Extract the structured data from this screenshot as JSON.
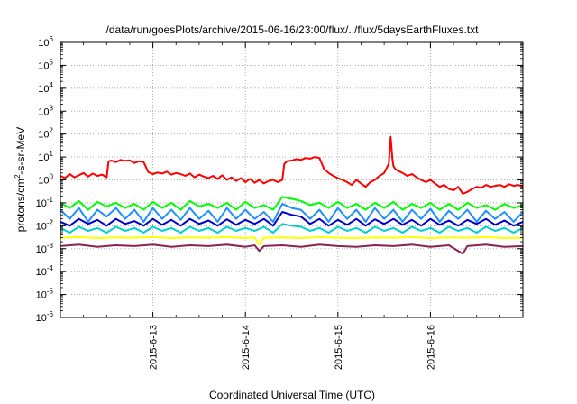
{
  "chart_data": {
    "type": "line",
    "title": "/data/run/goesPlots/archive/2015-06-16/23:00/flux/../flux/5daysEarthFluxes.txt",
    "xlabel": "Coordinated Universal Time (UTC)",
    "ylabel": "protons/cm2-s-sr-MeV",
    "ylabel_parts": {
      "base": "protons/cm",
      "sup": "2",
      "rest": "-s-sr-MeV"
    },
    "yscale": "log",
    "ylim": [
      1e-06,
      1000000.0
    ],
    "xlim": [
      "2015-06-12T00:00",
      "2015-06-17T00:00"
    ],
    "grid": true,
    "legend": "none",
    "x_ticks": [
      {
        "value": "2015-06-13T00:00",
        "label": "2015-6-13"
      },
      {
        "value": "2015-06-14T00:00",
        "label": "2015-6-14"
      },
      {
        "value": "2015-06-15T00:00",
        "label": "2015-6-15"
      },
      {
        "value": "2015-06-16T00:00",
        "label": "2015-6-16"
      }
    ],
    "y_ticks": [
      {
        "exp": -6,
        "base": "10",
        "sup": "-6"
      },
      {
        "exp": -5,
        "base": "10",
        "sup": "-5"
      },
      {
        "exp": -4,
        "base": "10",
        "sup": "-4"
      },
      {
        "exp": -3,
        "base": "10",
        "sup": "-3"
      },
      {
        "exp": -2,
        "base": "10",
        "sup": "-2"
      },
      {
        "exp": -1,
        "base": "10",
        "sup": "-1"
      },
      {
        "exp": 0,
        "base": "10",
        "sup": "0"
      },
      {
        "exp": 1,
        "base": "10",
        "sup": "1"
      },
      {
        "exp": 2,
        "base": "10",
        "sup": "2"
      },
      {
        "exp": 3,
        "base": "10",
        "sup": "3"
      },
      {
        "exp": 4,
        "base": "10",
        "sup": "4"
      },
      {
        "exp": 5,
        "base": "10",
        "sup": "5"
      },
      {
        "exp": 6,
        "base": "10",
        "sup": "6"
      }
    ],
    "series": [
      {
        "color": "#ff0000",
        "x_days": [
          0.0,
          0.05,
          0.1,
          0.15,
          0.2,
          0.25,
          0.3,
          0.35,
          0.4,
          0.45,
          0.5,
          0.52,
          0.55,
          0.6,
          0.65,
          0.7,
          0.75,
          0.8,
          0.85,
          0.9,
          0.95,
          1.0,
          1.05,
          1.1,
          1.15,
          1.2,
          1.25,
          1.3,
          1.35,
          1.4,
          1.45,
          1.5,
          1.55,
          1.6,
          1.65,
          1.7,
          1.75,
          1.8,
          1.85,
          1.9,
          1.95,
          2.0,
          2.05,
          2.1,
          2.15,
          2.2,
          2.25,
          2.3,
          2.35,
          2.4,
          2.42,
          2.45,
          2.5,
          2.55,
          2.6,
          2.65,
          2.7,
          2.75,
          2.8,
          2.82,
          2.85,
          2.9,
          2.95,
          3.0,
          3.05,
          3.1,
          3.15,
          3.2,
          3.25,
          3.3,
          3.35,
          3.4,
          3.45,
          3.5,
          3.55,
          3.57,
          3.59,
          3.6,
          3.62,
          3.65,
          3.7,
          3.75,
          3.8,
          3.85,
          3.9,
          3.95,
          4.0,
          4.05,
          4.1,
          4.15,
          4.2,
          4.25,
          4.3,
          4.35,
          4.4,
          4.45,
          4.5,
          4.55,
          4.6,
          4.65,
          4.7,
          4.75,
          4.8,
          4.85,
          4.9,
          4.95,
          5.0
        ],
        "values": [
          1.5,
          1.2,
          1.8,
          1.3,
          1.6,
          2.0,
          1.4,
          1.9,
          1.5,
          1.7,
          1.3,
          6.5,
          7.0,
          6.0,
          7.5,
          6.8,
          7.2,
          5.5,
          6.5,
          6.0,
          2.2,
          1.8,
          2.1,
          1.9,
          2.3,
          1.7,
          2.0,
          1.8,
          1.5,
          1.9,
          1.3,
          1.7,
          1.4,
          1.2,
          1.5,
          1.1,
          1.6,
          1.0,
          1.3,
          0.9,
          1.2,
          0.8,
          1.1,
          0.75,
          1.0,
          0.7,
          0.9,
          1.0,
          0.8,
          1.0,
          5.0,
          6.5,
          7.0,
          8.0,
          7.5,
          9.0,
          8.5,
          10.0,
          9.0,
          6.0,
          3.0,
          2.0,
          1.5,
          1.2,
          1.0,
          0.8,
          0.6,
          1.0,
          0.7,
          0.5,
          0.8,
          1.0,
          1.5,
          2.0,
          5.0,
          75.0,
          8.0,
          4.0,
          3.0,
          2.5,
          2.0,
          1.5,
          1.8,
          1.3,
          1.0,
          0.8,
          1.0,
          0.7,
          0.5,
          0.6,
          0.4,
          0.35,
          0.5,
          0.25,
          0.3,
          0.4,
          0.5,
          0.45,
          0.6,
          0.5,
          0.55,
          0.6,
          0.5,
          0.65,
          0.55,
          0.6,
          0.5
        ]
      },
      {
        "color": "#00ff00",
        "x_days": [
          0.0,
          0.1,
          0.2,
          0.3,
          0.4,
          0.5,
          0.6,
          0.7,
          0.8,
          0.9,
          1.0,
          1.1,
          1.2,
          1.3,
          1.4,
          1.5,
          1.6,
          1.7,
          1.8,
          1.9,
          2.0,
          2.1,
          2.2,
          2.3,
          2.4,
          2.5,
          2.6,
          2.7,
          2.8,
          2.9,
          3.0,
          3.1,
          3.2,
          3.3,
          3.4,
          3.5,
          3.6,
          3.7,
          3.8,
          3.9,
          4.0,
          4.1,
          4.2,
          4.3,
          4.4,
          4.5,
          4.6,
          4.7,
          4.8,
          4.9,
          5.0
        ],
        "values": [
          0.1,
          0.06,
          0.12,
          0.05,
          0.11,
          0.07,
          0.1,
          0.06,
          0.09,
          0.05,
          0.11,
          0.06,
          0.1,
          0.05,
          0.12,
          0.07,
          0.09,
          0.06,
          0.1,
          0.05,
          0.11,
          0.06,
          0.08,
          0.05,
          0.18,
          0.15,
          0.12,
          0.08,
          0.1,
          0.06,
          0.11,
          0.06,
          0.09,
          0.05,
          0.1,
          0.06,
          0.11,
          0.05,
          0.09,
          0.06,
          0.1,
          0.05,
          0.09,
          0.05,
          0.1,
          0.06,
          0.08,
          0.05,
          0.09,
          0.06,
          0.08
        ]
      },
      {
        "color": "#1e90ff",
        "x_days": [
          0.0,
          0.1,
          0.2,
          0.3,
          0.4,
          0.5,
          0.6,
          0.7,
          0.8,
          0.9,
          1.0,
          1.1,
          1.2,
          1.3,
          1.4,
          1.5,
          1.6,
          1.7,
          1.8,
          1.9,
          2.0,
          2.1,
          2.2,
          2.3,
          2.4,
          2.5,
          2.6,
          2.7,
          2.8,
          2.9,
          3.0,
          3.1,
          3.2,
          3.3,
          3.4,
          3.5,
          3.6,
          3.7,
          3.8,
          3.9,
          4.0,
          4.1,
          4.2,
          4.3,
          4.4,
          4.5,
          4.6,
          4.7,
          4.8,
          4.9,
          5.0
        ],
        "values": [
          0.05,
          0.02,
          0.06,
          0.015,
          0.05,
          0.025,
          0.06,
          0.02,
          0.05,
          0.015,
          0.06,
          0.02,
          0.05,
          0.018,
          0.06,
          0.02,
          0.045,
          0.015,
          0.06,
          0.02,
          0.05,
          0.02,
          0.04,
          0.015,
          0.09,
          0.06,
          0.05,
          0.02,
          0.05,
          0.015,
          0.06,
          0.02,
          0.05,
          0.015,
          0.06,
          0.02,
          0.05,
          0.015,
          0.05,
          0.02,
          0.055,
          0.015,
          0.045,
          0.02,
          0.05,
          0.015,
          0.045,
          0.02,
          0.04,
          0.015,
          0.04
        ]
      },
      {
        "color": "#0000cd",
        "x_days": [
          0.0,
          0.1,
          0.2,
          0.3,
          0.4,
          0.5,
          0.6,
          0.7,
          0.8,
          0.9,
          1.0,
          1.1,
          1.2,
          1.3,
          1.4,
          1.5,
          1.6,
          1.7,
          1.8,
          1.9,
          2.0,
          2.1,
          2.2,
          2.3,
          2.4,
          2.5,
          2.6,
          2.7,
          2.8,
          2.9,
          3.0,
          3.1,
          3.2,
          3.3,
          3.4,
          3.5,
          3.6,
          3.7,
          3.8,
          3.9,
          4.0,
          4.1,
          4.2,
          4.3,
          4.4,
          4.5,
          4.6,
          4.7,
          4.8,
          4.9,
          5.0
        ],
        "values": [
          0.015,
          0.01,
          0.02,
          0.012,
          0.018,
          0.01,
          0.02,
          0.012,
          0.016,
          0.01,
          0.02,
          0.011,
          0.018,
          0.01,
          0.02,
          0.012,
          0.017,
          0.01,
          0.019,
          0.011,
          0.018,
          0.012,
          0.02,
          0.01,
          0.04,
          0.03,
          0.025,
          0.012,
          0.02,
          0.01,
          0.018,
          0.011,
          0.02,
          0.01,
          0.019,
          0.012,
          0.02,
          0.011,
          0.018,
          0.01,
          0.02,
          0.011,
          0.017,
          0.01,
          0.018,
          0.012,
          0.02,
          0.011,
          0.017,
          0.01,
          0.015
        ]
      },
      {
        "color": "#00ced1",
        "x_days": [
          0.0,
          0.1,
          0.2,
          0.3,
          0.4,
          0.5,
          0.6,
          0.7,
          0.8,
          0.9,
          1.0,
          1.1,
          1.2,
          1.3,
          1.4,
          1.5,
          1.6,
          1.7,
          1.8,
          1.9,
          2.0,
          2.1,
          2.2,
          2.3,
          2.4,
          2.5,
          2.6,
          2.7,
          2.8,
          2.9,
          3.0,
          3.1,
          3.2,
          3.3,
          3.4,
          3.5,
          3.6,
          3.7,
          3.8,
          3.9,
          4.0,
          4.1,
          4.2,
          4.3,
          4.4,
          4.5,
          4.6,
          4.7,
          4.8,
          4.9,
          5.0
        ],
        "values": [
          0.008,
          0.005,
          0.009,
          0.006,
          0.008,
          0.005,
          0.009,
          0.006,
          0.008,
          0.005,
          0.009,
          0.006,
          0.008,
          0.005,
          0.009,
          0.006,
          0.008,
          0.005,
          0.009,
          0.006,
          0.008,
          0.006,
          0.009,
          0.005,
          0.012,
          0.01,
          0.009,
          0.006,
          0.008,
          0.005,
          0.009,
          0.006,
          0.008,
          0.005,
          0.009,
          0.006,
          0.008,
          0.005,
          0.009,
          0.006,
          0.008,
          0.005,
          0.009,
          0.006,
          0.008,
          0.005,
          0.009,
          0.006,
          0.008,
          0.005,
          0.008
        ]
      },
      {
        "color": "#ffff00",
        "x_days": [
          0.0,
          0.2,
          0.4,
          0.6,
          0.8,
          1.0,
          1.2,
          1.4,
          1.6,
          1.8,
          2.0,
          2.1,
          2.15,
          2.2,
          2.4,
          2.6,
          2.8,
          3.0,
          3.2,
          3.4,
          3.6,
          3.8,
          4.0,
          4.2,
          4.4,
          4.6,
          4.8,
          5.0
        ],
        "values": [
          0.003,
          0.0032,
          0.0029,
          0.0031,
          0.003,
          0.0032,
          0.0029,
          0.0031,
          0.003,
          0.0032,
          0.0029,
          0.0031,
          0.0015,
          0.003,
          0.0031,
          0.0029,
          0.0032,
          0.003,
          0.0029,
          0.0031,
          0.003,
          0.0032,
          0.0029,
          0.0031,
          0.003,
          0.0032,
          0.0029,
          0.003
        ]
      },
      {
        "color": "#8b2252",
        "x_days": [
          0.0,
          0.2,
          0.4,
          0.6,
          0.8,
          1.0,
          1.2,
          1.4,
          1.6,
          1.8,
          2.0,
          2.1,
          2.15,
          2.2,
          2.4,
          2.6,
          2.8,
          3.0,
          3.2,
          3.4,
          3.6,
          3.8,
          4.0,
          4.2,
          4.35,
          4.4,
          4.6,
          4.8,
          5.0
        ],
        "values": [
          0.0013,
          0.0015,
          0.0012,
          0.0014,
          0.0013,
          0.0015,
          0.0012,
          0.0014,
          0.0013,
          0.0015,
          0.0012,
          0.0014,
          0.0008,
          0.0013,
          0.0014,
          0.0012,
          0.0015,
          0.0013,
          0.0012,
          0.0014,
          0.0013,
          0.0015,
          0.0012,
          0.0014,
          0.0006,
          0.0013,
          0.0015,
          0.0012,
          0.0013
        ]
      }
    ]
  }
}
